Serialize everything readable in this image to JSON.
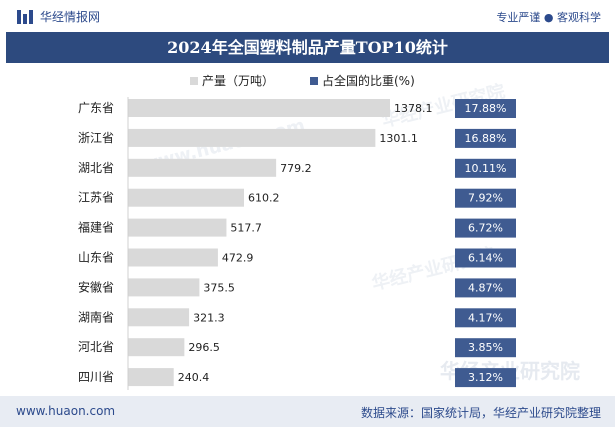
{
  "header": {
    "brand": "华经情报网",
    "tagline": "专业严谨 ● 客观科学"
  },
  "watermark": {
    "text": "华经产业研究院",
    "url": "www.huaon.com"
  },
  "footer": {
    "url": "www.huaon.com",
    "source": "数据来源：国家统计局，华经产业研究院整理"
  },
  "colors": {
    "title_bg": "#2d4a7e",
    "bar": "#d9d9d9",
    "share_box": "#3f5b91",
    "brand": "#2c4a8c"
  },
  "chart_data": {
    "type": "bar",
    "orientation": "horizontal",
    "title": "2024年全国塑料制品产量TOP10统计",
    "legend_position": "top",
    "categories": [
      "广东省",
      "浙江省",
      "湖北省",
      "江苏省",
      "福建省",
      "山东省",
      "安徽省",
      "湖南省",
      "河北省",
      "四川省"
    ],
    "series": [
      {
        "name": "产量（万吨）",
        "values": [
          1378.1,
          1301.1,
          779.2,
          610.2,
          517.7,
          472.9,
          375.5,
          321.3,
          296.5,
          240.4
        ],
        "labels": [
          "1378.1",
          "1301.1",
          "779.2",
          "610.2",
          "517.7",
          "472.9",
          "375.5",
          "321.3",
          "296.5",
          "240.4"
        ]
      },
      {
        "name": "占全国的比重(%)",
        "values": [
          17.88,
          16.88,
          10.11,
          7.92,
          6.72,
          6.14,
          4.87,
          4.17,
          3.85,
          3.12
        ],
        "labels": [
          "17.88%",
          "16.88%",
          "10.11%",
          "7.92%",
          "6.72%",
          "6.14%",
          "4.87%",
          "4.17%",
          "3.85%",
          "3.12%"
        ]
      }
    ],
    "grid": false
  }
}
